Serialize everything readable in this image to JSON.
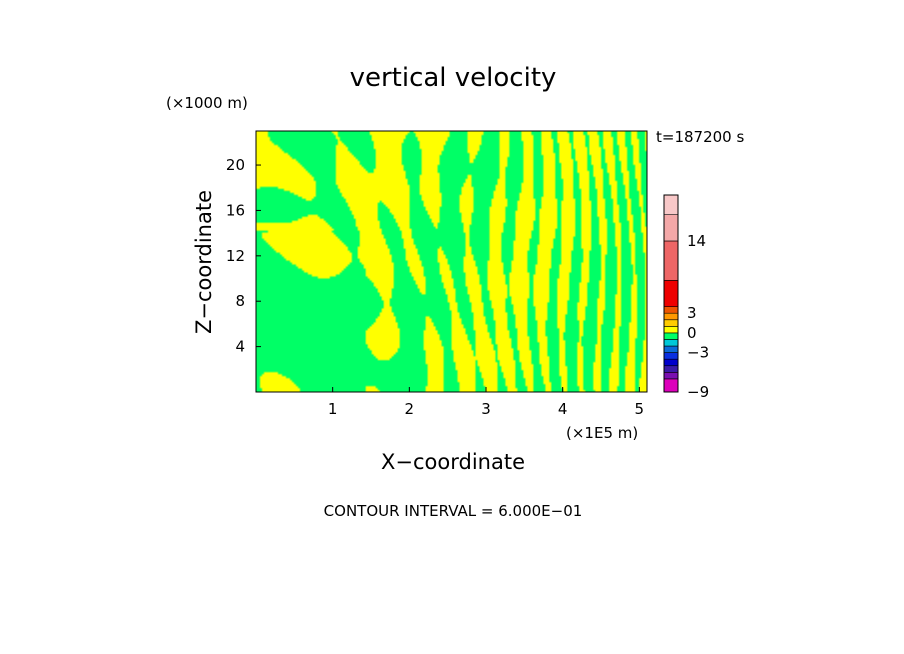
{
  "chart_data": {
    "type": "heatmap",
    "title": "vertical velocity",
    "xlabel": "X−coordinate",
    "ylabel": "Z−coordinate",
    "x_scale_label": "(×1E5 m)",
    "y_scale_label": "(×1000 m)",
    "time_label": "t=187200 s",
    "footer": "CONTOUR INTERVAL = 6.000E−01",
    "xlim": [
      0,
      5.1
    ],
    "ylim": [
      0,
      23
    ],
    "x_ticks": [
      {
        "value": 1,
        "label": "1"
      },
      {
        "value": 2,
        "label": "2"
      },
      {
        "value": 3,
        "label": "3"
      },
      {
        "value": 4,
        "label": "4"
      },
      {
        "value": 5,
        "label": "5"
      }
    ],
    "y_ticks": [
      {
        "value": 4,
        "label": "4"
      },
      {
        "value": 8,
        "label": "8"
      },
      {
        "value": 12,
        "label": "12"
      },
      {
        "value": 16,
        "label": "16"
      },
      {
        "value": 20,
        "label": "20"
      }
    ],
    "colorbar": {
      "segments": [
        {
          "from": -9,
          "to": -7,
          "color": "#dd00bb"
        },
        {
          "from": -7,
          "to": -6,
          "color": "#7a10b0"
        },
        {
          "from": -6,
          "to": -5,
          "color": "#3a1aa8"
        },
        {
          "from": -5,
          "to": -4,
          "color": "#0000cc"
        },
        {
          "from": -4,
          "to": -3,
          "color": "#0a2fe0"
        },
        {
          "from": -3,
          "to": -2,
          "color": "#0b6ad8"
        },
        {
          "from": -2,
          "to": -1,
          "color": "#00c8d8"
        },
        {
          "from": -1,
          "to": 0,
          "color": "#00ff66"
        },
        {
          "from": 0,
          "to": 1,
          "color": "#ffff00"
        },
        {
          "from": 1,
          "to": 2,
          "color": "#ffcc00"
        },
        {
          "from": 2,
          "to": 3,
          "color": "#ff9900"
        },
        {
          "from": 3,
          "to": 4,
          "color": "#ee5500"
        },
        {
          "from": 4,
          "to": 8,
          "color": "#ee0000"
        },
        {
          "from": 8,
          "to": 14,
          "color": "#ee6666"
        },
        {
          "from": 14,
          "to": 18,
          "color": "#f4a8a8"
        },
        {
          "from": 18,
          "to": 21,
          "color": "#f8c8c8"
        }
      ],
      "tick_labels": [
        {
          "value": 14,
          "label": "14"
        },
        {
          "value": 3,
          "label": "3"
        },
        {
          "value": 0,
          "label": "0"
        },
        {
          "value": -3,
          "label": "−3"
        },
        {
          "value": -9,
          "label": "−9"
        }
      ]
    },
    "field_colors": {
      "positive": "#ffff00",
      "negative": "#00ff66"
    }
  }
}
